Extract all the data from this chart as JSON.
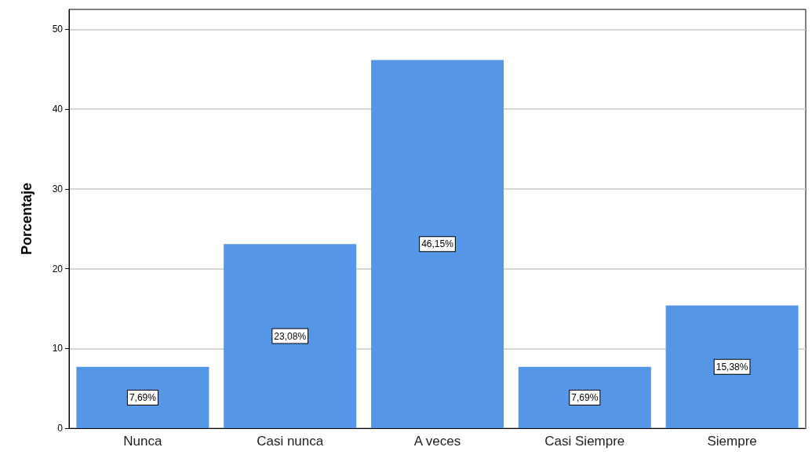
{
  "chart_data": {
    "type": "bar",
    "ylabel": "Porcentaje",
    "categories": [
      "Nunca",
      "Casi nunca",
      "A veces",
      "Casi Siempre",
      "Siempre"
    ],
    "values": [
      7.69,
      23.08,
      46.15,
      7.69,
      15.38
    ],
    "value_labels": [
      "7,69%",
      "23,08%",
      "46,15%",
      "7,69%",
      "15,38%"
    ],
    "color": "#5596e6",
    "ylim": [
      0,
      52.5
    ],
    "yticks": [
      0,
      10,
      20,
      30,
      40,
      50
    ],
    "grid": "y"
  }
}
